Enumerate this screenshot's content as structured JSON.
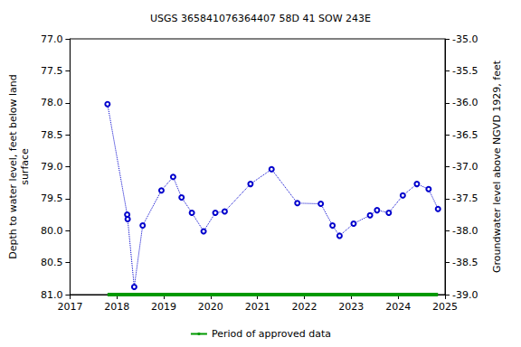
{
  "chart_data": {
    "type": "line",
    "title": "USGS 365841076364407 58D 41 SOW 243E",
    "y_label": "Depth to water level, feet below land\nsurface",
    "y2_label": "Groundwater level above NGVD 1929, feet",
    "x": [
      2017.8,
      2018.22,
      2018.23,
      2018.37,
      2018.55,
      2018.95,
      2019.2,
      2019.38,
      2019.6,
      2019.85,
      2020.1,
      2020.3,
      2020.85,
      2021.3,
      2021.85,
      2022.35,
      2022.6,
      2022.75,
      2023.05,
      2023.4,
      2023.55,
      2023.8,
      2024.1,
      2024.4,
      2024.65,
      2024.85
    ],
    "values": [
      78.02,
      79.75,
      79.82,
      80.88,
      79.92,
      79.37,
      79.16,
      79.48,
      79.72,
      80.01,
      79.72,
      79.7,
      79.27,
      79.04,
      79.57,
      79.58,
      79.92,
      80.08,
      79.89,
      79.76,
      79.68,
      79.72,
      79.45,
      79.27,
      79.35,
      79.66
    ],
    "color": "#0000cc",
    "marker": "circle",
    "line_style": "dotted",
    "xlim": [
      2017,
      2025
    ],
    "xticks": [
      2017,
      2018,
      2019,
      2020,
      2021,
      2022,
      2023,
      2024,
      2025
    ],
    "ylim": [
      81,
      77
    ],
    "yticks": [
      {
        "value": 77,
        "label": "77.0"
      },
      {
        "value": 77.5,
        "label": "77.5"
      },
      {
        "value": 78,
        "label": "78.0"
      },
      {
        "value": 78.5,
        "label": "78.5"
      },
      {
        "value": 79,
        "label": "79.0"
      },
      {
        "value": 79.5,
        "label": "79.5"
      },
      {
        "value": 80,
        "label": "80.0"
      },
      {
        "value": 80.5,
        "label": "80.5"
      },
      {
        "value": 81,
        "label": "81.0"
      }
    ],
    "y2lim": [
      -39,
      -35
    ],
    "y2ticks": [
      {
        "value": -35,
        "label": "-35.0"
      },
      {
        "value": -35.5,
        "label": "-35.5"
      },
      {
        "value": -36,
        "label": "-36.0"
      },
      {
        "value": -36.5,
        "label": "-36.5"
      },
      {
        "value": -37,
        "label": "-37.0"
      },
      {
        "value": -37.5,
        "label": "-37.5"
      },
      {
        "value": -38,
        "label": "-38.0"
      },
      {
        "value": -38.5,
        "label": "-38.5"
      },
      {
        "value": -39,
        "label": "-39.0"
      }
    ],
    "grid": false,
    "legend": "bottom",
    "approved_period": {
      "label": "Period of approved data",
      "x": [
        2017.8,
        2024.85
      ],
      "color": "#009900"
    }
  }
}
